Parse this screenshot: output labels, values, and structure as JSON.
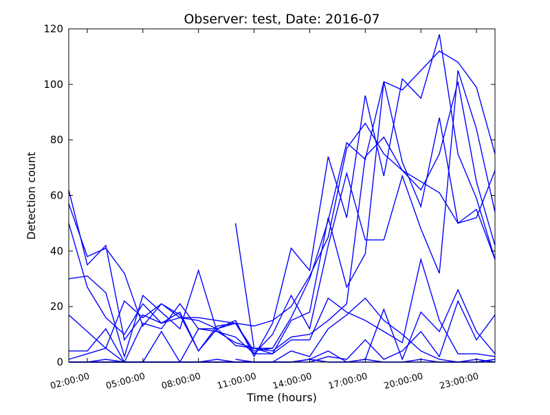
{
  "chart_data": {
    "type": "line",
    "title": "Observer: test, Date: 2016-07",
    "xlabel": "Time (hours)",
    "ylabel": "Detection count",
    "xlim": [
      1,
      24
    ],
    "ylim": [
      0,
      120
    ],
    "x_ticks": [
      {
        "value": 2,
        "label": "02:00:00"
      },
      {
        "value": 5,
        "label": "05:00:00"
      },
      {
        "value": 8,
        "label": "08:00:00"
      },
      {
        "value": 11,
        "label": "11:00:00"
      },
      {
        "value": 14,
        "label": "14:00:00"
      },
      {
        "value": 17,
        "label": "17:00:00"
      },
      {
        "value": 20,
        "label": "20:00:00"
      },
      {
        "value": 23,
        "label": "23:00:00"
      }
    ],
    "y_ticks": [
      0,
      20,
      40,
      60,
      80,
      100,
      120
    ],
    "grid": false,
    "legend": "none",
    "line_color": "#0000ff",
    "series": [
      {
        "points": [
          [
            1,
            62
          ],
          [
            2,
            35
          ],
          [
            3,
            42
          ],
          [
            4,
            8
          ],
          [
            5,
            17
          ],
          [
            6,
            14
          ],
          [
            7,
            18
          ],
          [
            8,
            4
          ],
          [
            9,
            12
          ],
          [
            10,
            15
          ],
          [
            11,
            2
          ],
          [
            12,
            14
          ],
          [
            13,
            41
          ],
          [
            14,
            33
          ],
          [
            15,
            74
          ],
          [
            16,
            52
          ],
          [
            17,
            96
          ],
          [
            18,
            67
          ],
          [
            19,
            102
          ],
          [
            20,
            95
          ],
          [
            21,
            118
          ],
          [
            22,
            75
          ],
          [
            23,
            59
          ],
          [
            24,
            37
          ]
        ]
      },
      {
        "points": [
          [
            1,
            57
          ],
          [
            2,
            38
          ],
          [
            3,
            41
          ],
          [
            4,
            32
          ],
          [
            5,
            13
          ],
          [
            6,
            21
          ],
          [
            7,
            17
          ],
          [
            8,
            4
          ],
          [
            9,
            13
          ],
          [
            10,
            14
          ],
          [
            11,
            4
          ],
          [
            12,
            5
          ],
          [
            13,
            16
          ],
          [
            14,
            30
          ],
          [
            15,
            51
          ],
          [
            16,
            79
          ],
          [
            17,
            73
          ],
          [
            18,
            101
          ],
          [
            19,
            98
          ],
          [
            20,
            105
          ],
          [
            21,
            112
          ],
          [
            22,
            108
          ],
          [
            23,
            99
          ],
          [
            24,
            75
          ]
        ]
      },
      {
        "points": [
          [
            1,
            50
          ],
          [
            2,
            27
          ],
          [
            3,
            16
          ],
          [
            4,
            10
          ],
          [
            5,
            21
          ],
          [
            6,
            14
          ],
          [
            7,
            16
          ],
          [
            8,
            16
          ],
          [
            9,
            15
          ],
          [
            10,
            14
          ],
          [
            11,
            13
          ],
          [
            12,
            15
          ],
          [
            13,
            20
          ],
          [
            14,
            31
          ],
          [
            15,
            45
          ],
          [
            16,
            77
          ],
          [
            17,
            86
          ],
          [
            18,
            75
          ],
          [
            19,
            69
          ],
          [
            20,
            65
          ],
          [
            21,
            61
          ],
          [
            22,
            50
          ],
          [
            23,
            55
          ],
          [
            24,
            37
          ]
        ]
      },
      {
        "points": [
          [
            1,
            30
          ],
          [
            2,
            31
          ],
          [
            3,
            25
          ],
          [
            4,
            2
          ],
          [
            5,
            24
          ],
          [
            6,
            18
          ],
          [
            7,
            12
          ],
          [
            8,
            33
          ],
          [
            9,
            11
          ],
          [
            10,
            9
          ],
          [
            11,
            3
          ],
          [
            12,
            3
          ],
          [
            13,
            15
          ],
          [
            14,
            18
          ],
          [
            15,
            52
          ],
          [
            16,
            27
          ],
          [
            17,
            39
          ],
          [
            18,
            101
          ],
          [
            19,
            72
          ],
          [
            20,
            56
          ],
          [
            21,
            88
          ],
          [
            22,
            50
          ],
          [
            23,
            52
          ],
          [
            24,
            69
          ]
        ]
      },
      {
        "points": [
          [
            1,
            17
          ],
          [
            2,
            11
          ],
          [
            3,
            5
          ],
          [
            4,
            22
          ],
          [
            5,
            16
          ],
          [
            6,
            21
          ],
          [
            7,
            16
          ],
          [
            8,
            15
          ],
          [
            9,
            12
          ],
          [
            10,
            14
          ],
          [
            11,
            3
          ],
          [
            12,
            10
          ],
          [
            13,
            24
          ],
          [
            14,
            12
          ],
          [
            15,
            42
          ],
          [
            16,
            68
          ],
          [
            17,
            44
          ],
          [
            18,
            44
          ],
          [
            19,
            67
          ],
          [
            20,
            48
          ],
          [
            21,
            32
          ],
          [
            22,
            105
          ],
          [
            23,
            84
          ],
          [
            24,
            54
          ]
        ]
      },
      {
        "points": [
          [
            1,
            4
          ],
          [
            2,
            4
          ],
          [
            3,
            12
          ],
          [
            4,
            0
          ],
          [
            5,
            14
          ],
          [
            6,
            12
          ],
          [
            7,
            21
          ],
          [
            8,
            12
          ],
          [
            9,
            11
          ],
          [
            10,
            7
          ],
          [
            11,
            5
          ],
          [
            12,
            4
          ],
          [
            13,
            9
          ],
          [
            14,
            10
          ],
          [
            15,
            15
          ],
          [
            16,
            21
          ],
          [
            17,
            74
          ],
          [
            18,
            81
          ],
          [
            19,
            69
          ],
          [
            20,
            62
          ],
          [
            21,
            75
          ],
          [
            22,
            101
          ],
          [
            23,
            65
          ],
          [
            24,
            42
          ]
        ]
      },
      {
        "points": [
          [
            1,
            1
          ],
          [
            2,
            3
          ],
          [
            3,
            5
          ],
          [
            4,
            0
          ],
          [
            5,
            0
          ],
          [
            6,
            11
          ],
          [
            7,
            0
          ],
          [
            8,
            12
          ],
          [
            9,
            12
          ],
          [
            10,
            6
          ],
          [
            11,
            5
          ],
          [
            12,
            3
          ],
          [
            13,
            8
          ],
          [
            14,
            8
          ],
          [
            15,
            23
          ],
          [
            16,
            18
          ],
          [
            17,
            15
          ],
          [
            18,
            11
          ],
          [
            19,
            7
          ],
          [
            20,
            37
          ],
          [
            21,
            15
          ],
          [
            22,
            3
          ],
          [
            23,
            3
          ],
          [
            24,
            2
          ]
        ]
      },
      {
        "points": [
          [
            1,
            0
          ],
          [
            2,
            0
          ],
          [
            3,
            0
          ],
          [
            4,
            0
          ],
          [
            5,
            0
          ],
          [
            6,
            0
          ],
          [
            7,
            0
          ],
          [
            8,
            0
          ],
          [
            9,
            0
          ],
          [
            10,
            0
          ],
          [
            11,
            0
          ],
          [
            12,
            0
          ],
          [
            13,
            4
          ],
          [
            14,
            2
          ],
          [
            15,
            12
          ],
          [
            16,
            17
          ],
          [
            17,
            23
          ],
          [
            18,
            15
          ],
          [
            19,
            10
          ],
          [
            20,
            4
          ],
          [
            21,
            1
          ],
          [
            22,
            0
          ],
          [
            23,
            0
          ],
          [
            24,
            1
          ]
        ]
      },
      {
        "points": [
          [
            1,
            0
          ],
          [
            2,
            0
          ],
          [
            3,
            0
          ],
          [
            4,
            0
          ],
          [
            5,
            0
          ],
          [
            6,
            0
          ],
          [
            7,
            0
          ],
          [
            8,
            0
          ],
          [
            9,
            0
          ],
          [
            10,
            0
          ],
          [
            11,
            0
          ],
          [
            12,
            0
          ],
          [
            13,
            0
          ],
          [
            14,
            1
          ],
          [
            15,
            4
          ],
          [
            16,
            0
          ],
          [
            17,
            1
          ],
          [
            18,
            19
          ],
          [
            19,
            1
          ],
          [
            20,
            18
          ],
          [
            21,
            11
          ],
          [
            22,
            26
          ],
          [
            23,
            11
          ],
          [
            24,
            3
          ]
        ]
      },
      {
        "points": [
          [
            1,
            0
          ],
          [
            2,
            0
          ],
          [
            3,
            1
          ],
          [
            4,
            0
          ],
          [
            5,
            0
          ],
          [
            6,
            0
          ],
          [
            7,
            0
          ],
          [
            8,
            0
          ],
          [
            9,
            0
          ],
          [
            10,
            0
          ],
          [
            11,
            0
          ],
          [
            12,
            0
          ],
          [
            13,
            0
          ],
          [
            14,
            0
          ],
          [
            15,
            2
          ],
          [
            16,
            1
          ],
          [
            17,
            8
          ],
          [
            18,
            1
          ],
          [
            19,
            4
          ],
          [
            20,
            11
          ],
          [
            21,
            2
          ],
          [
            22,
            22
          ],
          [
            23,
            8
          ],
          [
            24,
            17
          ]
        ]
      },
      {
        "points": [
          [
            1,
            0
          ],
          [
            2,
            0
          ],
          [
            3,
            0
          ],
          [
            4,
            0
          ],
          [
            5,
            0
          ],
          [
            6,
            0
          ],
          [
            7,
            0
          ],
          [
            8,
            0
          ],
          [
            9,
            1
          ],
          [
            10,
            0
          ],
          [
            11,
            0
          ],
          [
            12,
            0
          ],
          [
            13,
            0
          ],
          [
            14,
            1
          ],
          [
            15,
            0
          ],
          [
            16,
            0
          ],
          [
            17,
            1
          ],
          [
            18,
            0
          ],
          [
            19,
            0
          ],
          [
            20,
            0
          ],
          [
            21,
            0
          ],
          [
            22,
            0
          ],
          [
            23,
            0
          ],
          [
            24,
            0
          ]
        ]
      },
      {
        "points": [
          [
            10,
            50
          ],
          [
            11,
            5
          ],
          [
            12,
            5
          ]
        ]
      },
      {
        "points": [
          [
            10,
            1
          ],
          [
            11,
            0
          ],
          [
            12,
            0
          ],
          [
            13,
            0
          ],
          [
            14,
            1
          ],
          [
            15,
            0
          ],
          [
            16,
            0
          ],
          [
            17,
            0
          ],
          [
            18,
            0
          ],
          [
            19,
            0
          ],
          [
            20,
            1
          ],
          [
            21,
            0
          ],
          [
            22,
            0
          ],
          [
            23,
            1
          ],
          [
            24,
            0
          ]
        ]
      }
    ]
  }
}
